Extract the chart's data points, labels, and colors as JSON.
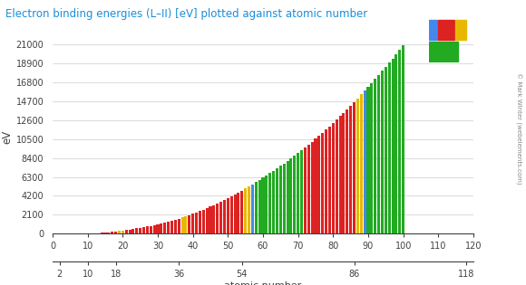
{
  "title": "Electron binding energies (L–II) [eV] plotted against atomic number",
  "xlabel": "atomic number",
  "ylabel": "eV",
  "yticks": [
    0,
    2100,
    4200,
    6300,
    8400,
    10500,
    12600,
    14700,
    16800,
    18900,
    21000
  ],
  "xticks_main": [
    0,
    10,
    20,
    30,
    40,
    50,
    60,
    70,
    80,
    90,
    100,
    110,
    120
  ],
  "xticks_period": [
    2,
    10,
    18,
    36,
    54,
    86,
    118
  ],
  "xlim": [
    0,
    120
  ],
  "ylim": [
    0,
    21500
  ],
  "elements": [
    [
      11,
      21.7,
      "#dd2222"
    ],
    [
      12,
      49.6,
      "#dd2222"
    ],
    [
      13,
      72.9,
      "#dd2222"
    ],
    [
      14,
      99.8,
      "#dd2222"
    ],
    [
      15,
      130.0,
      "#dd2222"
    ],
    [
      16,
      163.6,
      "#dd2222"
    ],
    [
      17,
      200.0,
      "#dd2222"
    ],
    [
      18,
      248.4,
      "#dd2222"
    ],
    [
      19,
      294.6,
      "#e8b800"
    ],
    [
      20,
      350.0,
      "#e8b800"
    ],
    [
      21,
      403.6,
      "#dd2222"
    ],
    [
      22,
      460.2,
      "#dd2222"
    ],
    [
      23,
      519.8,
      "#dd2222"
    ],
    [
      24,
      583.8,
      "#dd2222"
    ],
    [
      25,
      649.9,
      "#dd2222"
    ],
    [
      26,
      719.9,
      "#dd2222"
    ],
    [
      27,
      793.2,
      "#dd2222"
    ],
    [
      28,
      870.0,
      "#dd2222"
    ],
    [
      29,
      952.3,
      "#dd2222"
    ],
    [
      30,
      1043.0,
      "#dd2222"
    ],
    [
      31,
      1116.4,
      "#dd2222"
    ],
    [
      32,
      1217.0,
      "#dd2222"
    ],
    [
      33,
      1323.6,
      "#dd2222"
    ],
    [
      34,
      1433.9,
      "#dd2222"
    ],
    [
      35,
      1549.9,
      "#dd2222"
    ],
    [
      36,
      1675.0,
      "#dd2222"
    ],
    [
      37,
      1804.4,
      "#e8b800"
    ],
    [
      38,
      1940.0,
      "#e8b800"
    ],
    [
      39,
      2080.0,
      "#dd2222"
    ],
    [
      40,
      2222.3,
      "#dd2222"
    ],
    [
      41,
      2370.5,
      "#dd2222"
    ],
    [
      42,
      2520.0,
      "#dd2222"
    ],
    [
      43,
      2677.0,
      "#dd2222"
    ],
    [
      44,
      2836.0,
      "#dd2222"
    ],
    [
      45,
      3003.8,
      "#dd2222"
    ],
    [
      46,
      3173.3,
      "#dd2222"
    ],
    [
      47,
      3351.1,
      "#dd2222"
    ],
    [
      48,
      3537.5,
      "#dd2222"
    ],
    [
      49,
      3730.1,
      "#dd2222"
    ],
    [
      50,
      3928.8,
      "#dd2222"
    ],
    [
      51,
      4132.2,
      "#dd2222"
    ],
    [
      52,
      4341.4,
      "#dd2222"
    ],
    [
      53,
      4557.1,
      "#dd2222"
    ],
    [
      54,
      4782.2,
      "#dd2222"
    ],
    [
      55,
      5011.9,
      "#e8b800"
    ],
    [
      56,
      5247.0,
      "#e8b800"
    ],
    [
      57,
      5489.0,
      "#4488ee"
    ],
    [
      58,
      5723.0,
      "#22aa22"
    ],
    [
      59,
      5964.0,
      "#22aa22"
    ],
    [
      60,
      6208.0,
      "#22aa22"
    ],
    [
      61,
      6459.0,
      "#22aa22"
    ],
    [
      62,
      6716.0,
      "#22aa22"
    ],
    [
      63,
      6977.0,
      "#22aa22"
    ],
    [
      64,
      7242.0,
      "#22aa22"
    ],
    [
      65,
      7514.0,
      "#22aa22"
    ],
    [
      66,
      7790.0,
      "#22aa22"
    ],
    [
      67,
      8071.0,
      "#22aa22"
    ],
    [
      68,
      8358.0,
      "#22aa22"
    ],
    [
      69,
      8648.0,
      "#22aa22"
    ],
    [
      70,
      8944.0,
      "#22aa22"
    ],
    [
      71,
      9244.0,
      "#22aa22"
    ],
    [
      72,
      9560.7,
      "#dd2222"
    ],
    [
      73,
      9881.0,
      "#dd2222"
    ],
    [
      74,
      10206.8,
      "#dd2222"
    ],
    [
      75,
      10535.3,
      "#dd2222"
    ],
    [
      76,
      10870.9,
      "#dd2222"
    ],
    [
      77,
      11215.2,
      "#dd2222"
    ],
    [
      78,
      11563.7,
      "#dd2222"
    ],
    [
      79,
      11918.7,
      "#dd2222"
    ],
    [
      80,
      12284.0,
      "#dd2222"
    ],
    [
      81,
      12657.5,
      "#dd2222"
    ],
    [
      82,
      13035.2,
      "#dd2222"
    ],
    [
      83,
      13418.6,
      "#dd2222"
    ],
    [
      84,
      13813.8,
      "#dd2222"
    ],
    [
      85,
      14214.0,
      "#dd2222"
    ],
    [
      86,
      14619.0,
      "#dd2222"
    ],
    [
      87,
      15031.0,
      "#e8b800"
    ],
    [
      88,
      15444.0,
      "#e8b800"
    ],
    [
      89,
      15871.0,
      "#4488ee"
    ],
    [
      90,
      16300.0,
      "#22aa22"
    ],
    [
      91,
      16733.0,
      "#22aa22"
    ],
    [
      92,
      17166.3,
      "#22aa22"
    ],
    [
      93,
      17610.0,
      "#22aa22"
    ],
    [
      94,
      18057.0,
      "#22aa22"
    ],
    [
      95,
      18510.0,
      "#22aa22"
    ],
    [
      96,
      18970.0,
      "#22aa22"
    ],
    [
      97,
      19437.0,
      "#22aa22"
    ],
    [
      98,
      19930.0,
      "#22aa22"
    ],
    [
      99,
      20430.0,
      "#22aa22"
    ],
    [
      100,
      20900.0,
      "#22aa22"
    ]
  ]
}
